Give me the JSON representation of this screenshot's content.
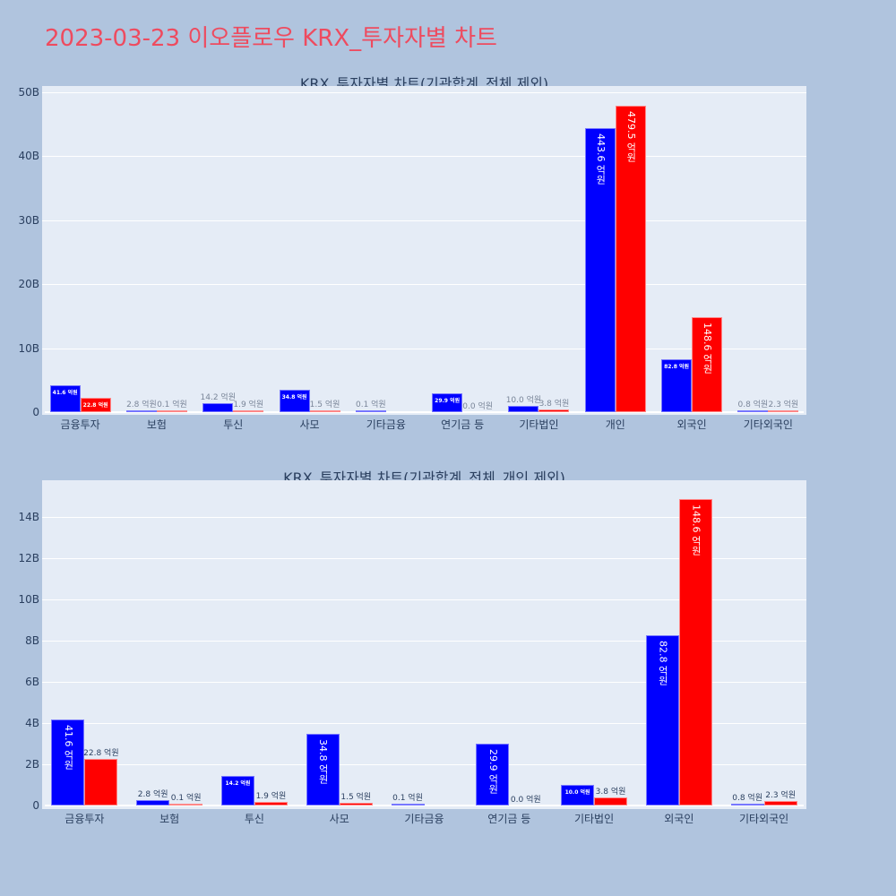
{
  "header": {
    "title": "2023-03-23 이오플로우 KRX_투자자별 차트"
  },
  "colors": {
    "buy": "#0000ff",
    "sell": "#ff0000",
    "title": "#ee4b5f",
    "background": "#b0c4de",
    "plot_bg": "#e5ecf6"
  },
  "chart_data": [
    {
      "type": "bar",
      "title": "KRX_투자자별 차트(기관합계_전체 제외)",
      "categories": [
        "금융투자",
        "보험",
        "투신",
        "사모",
        "기타금융",
        "연기금 등",
        "기타법인",
        "개인",
        "외국인",
        "기타외국인"
      ],
      "series": [
        {
          "name": "blue",
          "color": "#0000ff",
          "values": [
            4.16,
            0.28,
            1.42,
            3.48,
            0.01,
            2.99,
            1.0,
            44.36,
            8.28,
            0.08
          ],
          "labels": [
            "41.6 억원",
            "2.8 억원",
            "14.2 억원",
            "34.8 억원",
            "0.1 억원",
            "29.9 억원",
            "10.0 억원",
            "443.6 억원",
            "82.8 억원",
            "0.8 억원"
          ]
        },
        {
          "name": "red",
          "color": "#ff0000",
          "values": [
            2.28,
            0.01,
            0.19,
            0.15,
            0.0,
            0.0,
            0.38,
            47.95,
            14.86,
            0.23
          ],
          "labels": [
            "22.8 억원",
            "0.1 억원",
            "1.9 억원",
            "1.5 억원",
            "",
            "0.0 억원",
            "3.8 억원",
            "479.5 억원",
            "148.6 억원",
            "2.3 억원"
          ]
        }
      ],
      "yticks": [
        "0",
        "10B",
        "20B",
        "30B",
        "40B",
        "50B"
      ],
      "ytick_values": [
        0,
        10,
        20,
        30,
        40,
        50
      ],
      "ylim": [
        0,
        51
      ],
      "xlabel": "",
      "ylabel": "",
      "grid": true,
      "legend": "none"
    },
    {
      "type": "bar",
      "title": "KRX_투자자별 차트(기관합계_전체_개인 제외)",
      "categories": [
        "금융투자",
        "보험",
        "투신",
        "사모",
        "기타금융",
        "연기금 등",
        "기타법인",
        "외국인",
        "기타외국인"
      ],
      "series": [
        {
          "name": "blue",
          "color": "#0000ff",
          "values": [
            4.16,
            0.28,
            1.42,
            3.48,
            0.01,
            2.99,
            1.0,
            8.28,
            0.08
          ],
          "labels": [
            "41.6 억원",
            "2.8 억원",
            "14.2 억원",
            "34.8 억원",
            "0.1 억원",
            "29.9 억원",
            "10.0 억원",
            "82.8 억원",
            "0.8 억원"
          ]
        },
        {
          "name": "red",
          "color": "#ff0000",
          "values": [
            2.28,
            0.01,
            0.19,
            0.15,
            0.0,
            0.0,
            0.38,
            14.86,
            0.23
          ],
          "labels": [
            "22.8 억원",
            "0.1 억원",
            "1.9 억원",
            "1.5 억원",
            "",
            "0.0 억원",
            "3.8 억원",
            "148.6 억원",
            "2.3 억원"
          ]
        }
      ],
      "yticks": [
        "0",
        "2B",
        "4B",
        "6B",
        "8B",
        "10B",
        "12B",
        "14B"
      ],
      "ytick_values": [
        0,
        2,
        4,
        6,
        8,
        10,
        12,
        14
      ],
      "ylim": [
        0,
        15.6
      ],
      "xlabel": "",
      "ylabel": "",
      "grid": true,
      "legend": "none"
    }
  ]
}
